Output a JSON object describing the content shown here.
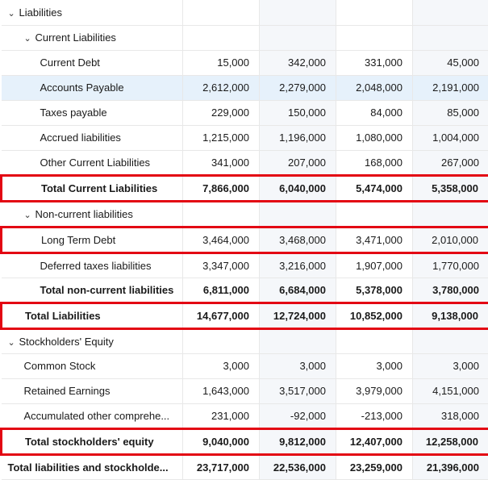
{
  "colors": {
    "highlight_border": "#e30613",
    "row_highlight_bg": "#e6f1fb",
    "alt_col_bg": "#f5f7fa",
    "border": "#e8e8e8",
    "text": "#1a1a1a"
  },
  "column_widths": {
    "label": 225,
    "value": 95
  },
  "rows": [
    {
      "key": "liabilities",
      "label": "Liabilities",
      "indent": 0,
      "bold": false,
      "chevron": true,
      "values": [
        "",
        "",
        "",
        ""
      ]
    },
    {
      "key": "current_liabilities",
      "label": "Current Liabilities",
      "indent": 1,
      "bold": false,
      "chevron": true,
      "values": [
        "",
        "",
        "",
        ""
      ]
    },
    {
      "key": "current_debt",
      "label": "Current Debt",
      "indent": 2,
      "bold": false,
      "chevron": false,
      "values": [
        "15,000",
        "342,000",
        "331,000",
        "45,000"
      ]
    },
    {
      "key": "accounts_payable",
      "label": "Accounts Payable",
      "indent": 2,
      "bold": false,
      "chevron": false,
      "values": [
        "2,612,000",
        "2,279,000",
        "2,048,000",
        "2,191,000"
      ],
      "row_highlight": true
    },
    {
      "key": "taxes_payable",
      "label": "Taxes payable",
      "indent": 2,
      "bold": false,
      "chevron": false,
      "values": [
        "229,000",
        "150,000",
        "84,000",
        "85,000"
      ]
    },
    {
      "key": "accrued_liabilities",
      "label": "Accrued liabilities",
      "indent": 2,
      "bold": false,
      "chevron": false,
      "values": [
        "1,215,000",
        "1,196,000",
        "1,080,000",
        "1,004,000"
      ]
    },
    {
      "key": "other_current_liabilities",
      "label": "Other Current Liabilities",
      "indent": 2,
      "bold": false,
      "chevron": false,
      "values": [
        "341,000",
        "207,000",
        "168,000",
        "267,000"
      ]
    },
    {
      "key": "total_current_liabilities",
      "label": "Total Current Liabilities",
      "indent": 2,
      "bold": true,
      "chevron": false,
      "values": [
        "7,866,000",
        "6,040,000",
        "5,474,000",
        "5,358,000"
      ],
      "red_box": true
    },
    {
      "key": "non_current_liabilities",
      "label": "Non-current liabilities",
      "indent": 1,
      "bold": false,
      "chevron": true,
      "values": [
        "",
        "",
        "",
        ""
      ]
    },
    {
      "key": "long_term_debt",
      "label": "Long Term Debt",
      "indent": 2,
      "bold": false,
      "chevron": false,
      "values": [
        "3,464,000",
        "3,468,000",
        "3,471,000",
        "2,010,000"
      ],
      "red_box": true
    },
    {
      "key": "deferred_taxes_liabilities",
      "label": "Deferred taxes liabilities",
      "indent": 2,
      "bold": false,
      "chevron": false,
      "values": [
        "3,347,000",
        "3,216,000",
        "1,907,000",
        "1,770,000"
      ]
    },
    {
      "key": "total_non_current_liabilities",
      "label": "Total non-current liabilities",
      "indent": 2,
      "bold": true,
      "chevron": false,
      "values": [
        "6,811,000",
        "6,684,000",
        "5,378,000",
        "3,780,000"
      ]
    },
    {
      "key": "total_liabilities",
      "label": "Total Liabilities",
      "indent": 1,
      "bold": true,
      "chevron": false,
      "values": [
        "14,677,000",
        "12,724,000",
        "10,852,000",
        "9,138,000"
      ],
      "red_box": true
    },
    {
      "key": "stockholders_equity",
      "label": "Stockholders' Equity",
      "indent": 0,
      "bold": false,
      "chevron": true,
      "values": [
        "",
        "",
        "",
        ""
      ]
    },
    {
      "key": "common_stock",
      "label": "Common Stock",
      "indent": 1,
      "bold": false,
      "chevron": false,
      "values": [
        "3,000",
        "3,000",
        "3,000",
        "3,000"
      ]
    },
    {
      "key": "retained_earnings",
      "label": "Retained Earnings",
      "indent": 1,
      "bold": false,
      "chevron": false,
      "values": [
        "1,643,000",
        "3,517,000",
        "3,979,000",
        "4,151,000"
      ]
    },
    {
      "key": "accumulated_other_comprehensive",
      "label": "Accumulated other comprehe...",
      "indent": 1,
      "bold": false,
      "chevron": false,
      "values": [
        "231,000",
        "-92,000",
        "-213,000",
        "318,000"
      ]
    },
    {
      "key": "total_stockholders_equity",
      "label": "Total stockholders' equity",
      "indent": 1,
      "bold": true,
      "chevron": false,
      "values": [
        "9,040,000",
        "9,812,000",
        "12,407,000",
        "12,258,000"
      ],
      "red_box": true
    },
    {
      "key": "total_liabilities_and_stockholders",
      "label": "Total liabilities and stockholde...",
      "indent": 0,
      "bold": true,
      "chevron": false,
      "values": [
        "23,717,000",
        "22,536,000",
        "23,259,000",
        "21,396,000"
      ]
    }
  ]
}
